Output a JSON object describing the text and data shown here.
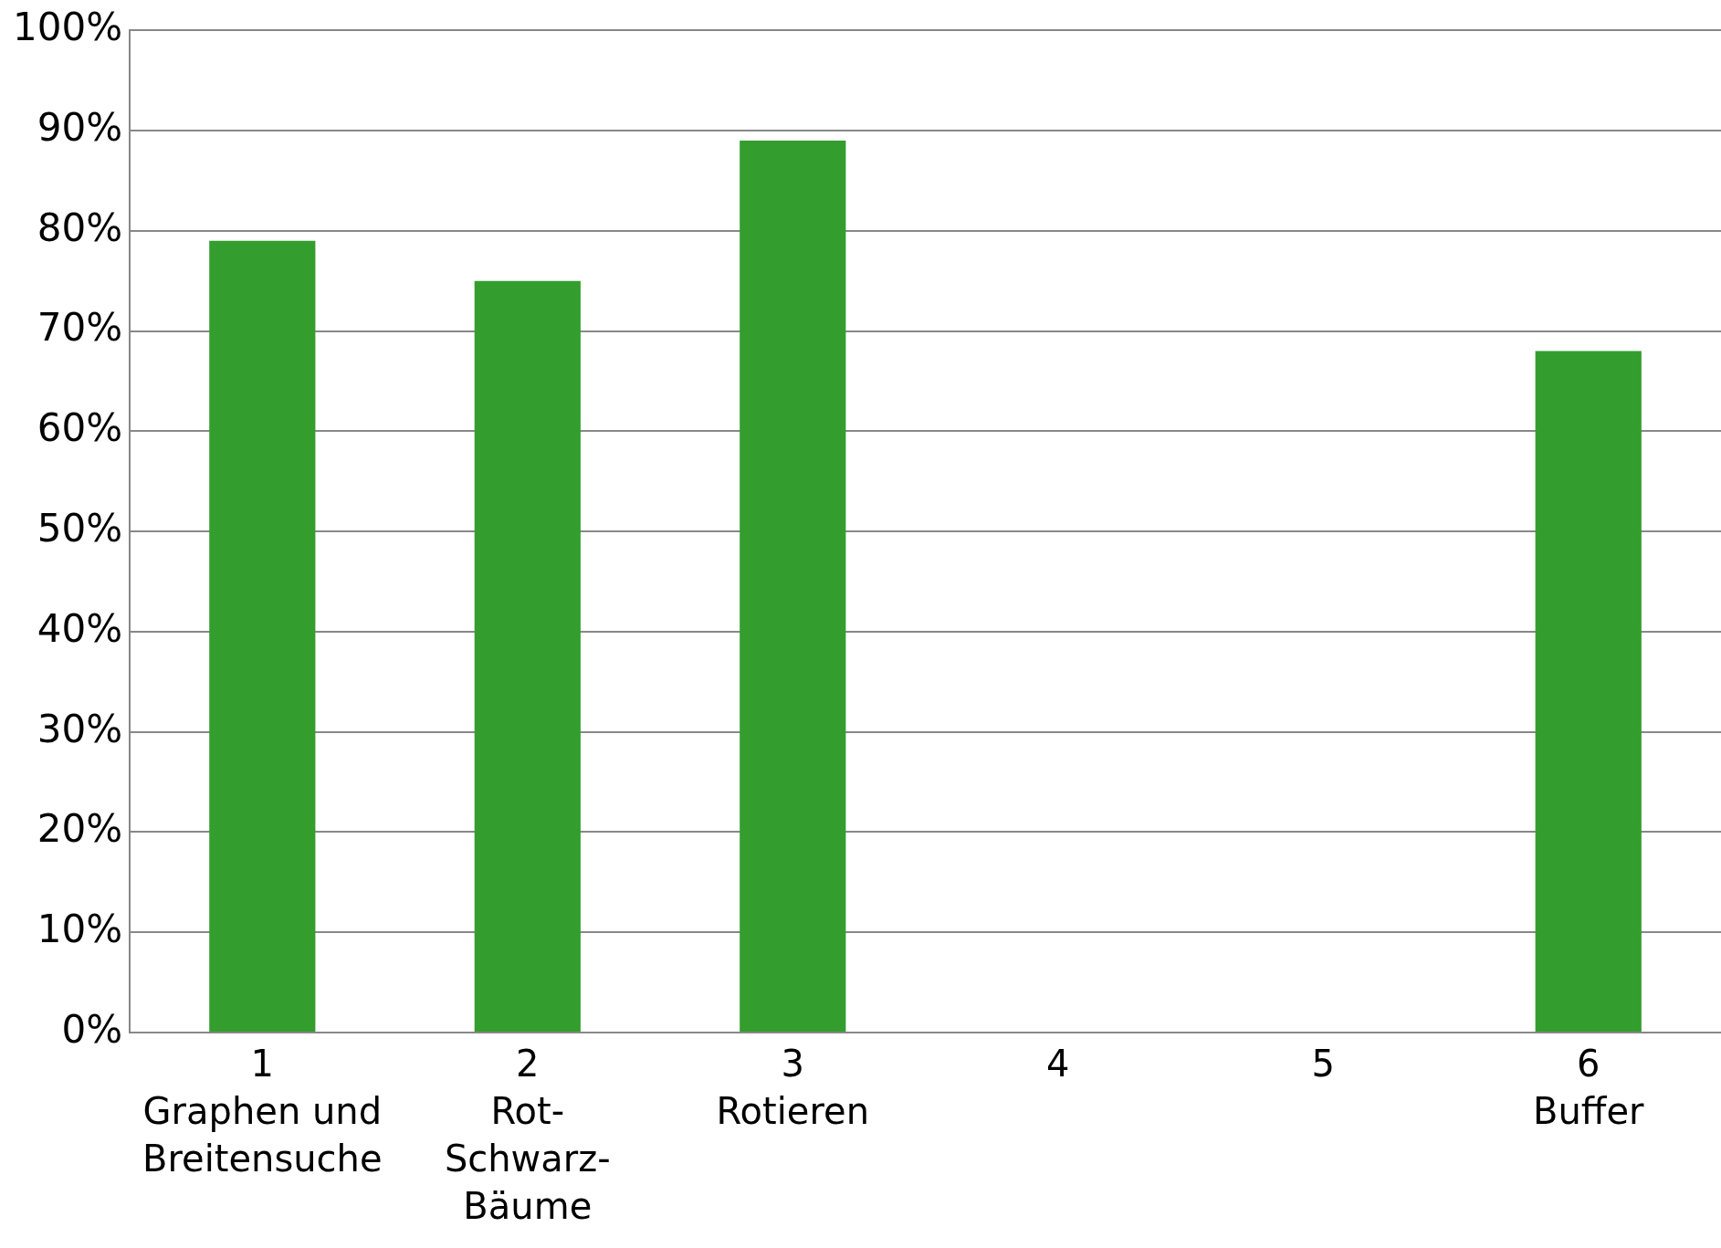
{
  "chart_data": {
    "type": "bar",
    "categories": [
      "1\nGraphen und\nBreitensuche",
      "2\nRot-\nSchwarz-\nBäume",
      "3\nRotieren",
      "4",
      "5",
      "6\nBuffer"
    ],
    "values": [
      79,
      75,
      89,
      null,
      null,
      68
    ],
    "color": "#339e2e",
    "ylim": [
      0,
      100
    ],
    "yticks": [
      {
        "value": 0,
        "label": "0%"
      },
      {
        "value": 10,
        "label": "10%"
      },
      {
        "value": 20,
        "label": "20%"
      },
      {
        "value": 30,
        "label": "30%"
      },
      {
        "value": 40,
        "label": "40%"
      },
      {
        "value": 50,
        "label": "50%"
      },
      {
        "value": 60,
        "label": "60%"
      },
      {
        "value": 70,
        "label": "70%"
      },
      {
        "value": 80,
        "label": "80%"
      },
      {
        "value": 90,
        "label": "90%"
      },
      {
        "value": 100,
        "label": "100%"
      }
    ],
    "grid": "y"
  }
}
